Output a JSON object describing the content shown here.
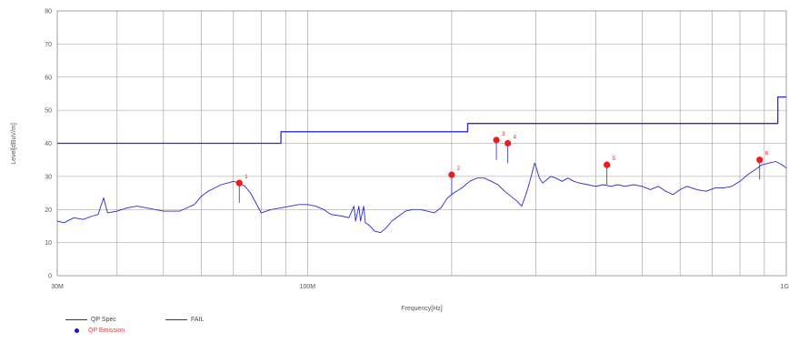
{
  "chart_data": {
    "type": "line",
    "title": "",
    "xlabel": "Frequency[Hz]",
    "ylabel": "Level[dBuV/m]",
    "x_scale": "log",
    "xlim": [
      30000000,
      1000000000
    ],
    "ylim": [
      0,
      80
    ],
    "grid": true,
    "legend_position": "bottom-left",
    "x_ticks": [
      {
        "value": 30000000,
        "label": "30M"
      },
      {
        "value": 100000000,
        "label": "100M"
      },
      {
        "value": 1000000000,
        "label": "1G"
      }
    ],
    "y_ticks": [
      {
        "value": 0,
        "label": "0"
      },
      {
        "value": 10,
        "label": "10"
      },
      {
        "value": 20,
        "label": "20"
      },
      {
        "value": 30,
        "label": "30"
      },
      {
        "value": 40,
        "label": "40"
      },
      {
        "value": 50,
        "label": "50"
      },
      {
        "value": 60,
        "label": "60"
      },
      {
        "value": 70,
        "label": "70"
      },
      {
        "value": 80,
        "label": "80"
      }
    ],
    "series": [
      {
        "name": "QP Spec",
        "color": "#2a2ad6",
        "style": "solid",
        "points": [
          [
            30000000,
            16.5
          ],
          [
            31000000,
            16.0
          ],
          [
            32500000,
            17.5
          ],
          [
            34000000,
            17.0
          ],
          [
            35500000,
            18.0
          ],
          [
            36500000,
            18.5
          ],
          [
            37500000,
            23.5
          ],
          [
            38200000,
            19.0
          ],
          [
            40000000,
            19.5
          ],
          [
            42000000,
            20.5
          ],
          [
            44000000,
            21.0
          ],
          [
            46000000,
            20.5
          ],
          [
            48000000,
            20.0
          ],
          [
            50000000,
            19.5
          ],
          [
            52000000,
            19.5
          ],
          [
            54000000,
            19.5
          ],
          [
            56000000,
            20.5
          ],
          [
            58000000,
            21.5
          ],
          [
            60000000,
            24.0
          ],
          [
            62000000,
            25.5
          ],
          [
            64000000,
            26.5
          ],
          [
            66000000,
            27.5
          ],
          [
            68000000,
            28.0
          ],
          [
            70000000,
            28.5
          ],
          [
            72000000,
            28.0
          ],
          [
            74000000,
            27.0
          ],
          [
            76000000,
            25.0
          ],
          [
            78000000,
            22.0
          ],
          [
            80000000,
            19.0
          ],
          [
            84000000,
            20.0
          ],
          [
            88000000,
            20.5
          ],
          [
            92000000,
            21.0
          ],
          [
            96000000,
            21.5
          ],
          [
            100000000,
            21.5
          ],
          [
            104000000,
            21.0
          ],
          [
            108000000,
            20.0
          ],
          [
            112000000,
            18.5
          ],
          [
            118000000,
            18.0
          ],
          [
            122000000,
            17.5
          ],
          [
            125000000,
            21.0
          ],
          [
            126000000,
            16.5
          ],
          [
            128000000,
            21.0
          ],
          [
            129000000,
            16.5
          ],
          [
            131000000,
            21.0
          ],
          [
            132000000,
            16.0
          ],
          [
            135000000,
            15.0
          ],
          [
            138000000,
            13.5
          ],
          [
            142000000,
            13.0
          ],
          [
            146000000,
            14.5
          ],
          [
            150000000,
            16.5
          ],
          [
            155000000,
            18.0
          ],
          [
            160000000,
            19.5
          ],
          [
            166000000,
            20.0
          ],
          [
            172000000,
            20.0
          ],
          [
            178000000,
            19.5
          ],
          [
            184000000,
            19.0
          ],
          [
            190000000,
            20.5
          ],
          [
            196000000,
            23.5
          ],
          [
            202000000,
            25.0
          ],
          [
            210000000,
            26.5
          ],
          [
            218000000,
            28.5
          ],
          [
            226000000,
            29.5
          ],
          [
            234000000,
            29.5
          ],
          [
            242000000,
            28.5
          ],
          [
            250000000,
            27.5
          ],
          [
            258000000,
            25.5
          ],
          [
            266000000,
            24.0
          ],
          [
            274000000,
            22.5
          ],
          [
            280000000,
            21.0
          ],
          [
            285000000,
            24.0
          ],
          [
            290000000,
            27.5
          ],
          [
            295000000,
            31.5
          ],
          [
            298000000,
            34.0
          ],
          [
            300000000,
            33.0
          ],
          [
            305000000,
            29.5
          ],
          [
            310000000,
            28.0
          ],
          [
            316000000,
            29.0
          ],
          [
            322000000,
            30.0
          ],
          [
            330000000,
            29.5
          ],
          [
            340000000,
            28.5
          ],
          [
            350000000,
            29.5
          ],
          [
            360000000,
            28.5
          ],
          [
            370000000,
            28.0
          ],
          [
            385000000,
            27.5
          ],
          [
            400000000,
            27.0
          ],
          [
            415000000,
            27.5
          ],
          [
            430000000,
            27.0
          ],
          [
            445000000,
            27.5
          ],
          [
            460000000,
            27.0
          ],
          [
            480000000,
            27.5
          ],
          [
            500000000,
            27.0
          ],
          [
            520000000,
            26.0
          ],
          [
            540000000,
            27.0
          ],
          [
            560000000,
            25.5
          ],
          [
            580000000,
            24.5
          ],
          [
            600000000,
            26.0
          ],
          [
            620000000,
            27.0
          ],
          [
            650000000,
            26.0
          ],
          [
            680000000,
            25.5
          ],
          [
            710000000,
            26.5
          ],
          [
            740000000,
            26.5
          ],
          [
            770000000,
            27.0
          ],
          [
            800000000,
            28.5
          ],
          [
            830000000,
            30.5
          ],
          [
            860000000,
            32.0
          ],
          [
            890000000,
            33.5
          ],
          [
            920000000,
            34.0
          ],
          [
            950000000,
            34.5
          ],
          [
            980000000,
            33.5
          ],
          [
            1000000000,
            32.5
          ]
        ]
      },
      {
        "name": "FAIL",
        "color": "#2a2ad6",
        "style": "solid",
        "points": [
          [
            30000000,
            40.0
          ],
          [
            88000000,
            40.0
          ],
          [
            88000000,
            43.5
          ],
          [
            216000000,
            43.5
          ],
          [
            216000000,
            46.0
          ],
          [
            960000000,
            46.0
          ],
          [
            960000000,
            54.0
          ],
          [
            1000000000,
            54.0
          ]
        ]
      }
    ],
    "markers": [
      {
        "label": "1",
        "x": 72000000,
        "y": 28.0
      },
      {
        "label": "2",
        "x": 200000000,
        "y": 30.5
      },
      {
        "label": "3",
        "x": 248000000,
        "y": 41.0
      },
      {
        "label": "4",
        "x": 262000000,
        "y": 40.0
      },
      {
        "label": "5",
        "x": 422000000,
        "y": 33.5
      },
      {
        "label": "6",
        "x": 880000000,
        "y": 35.0
      }
    ],
    "legend": [
      {
        "type": "line",
        "label": "QP Spec",
        "color": "#2a2ad6"
      },
      {
        "type": "line",
        "label": "FAIL",
        "color": "#2a2ad6"
      },
      {
        "type": "dot",
        "label": "QP Emission",
        "color": "#1a1acc",
        "text_color": "#e04040"
      }
    ]
  }
}
